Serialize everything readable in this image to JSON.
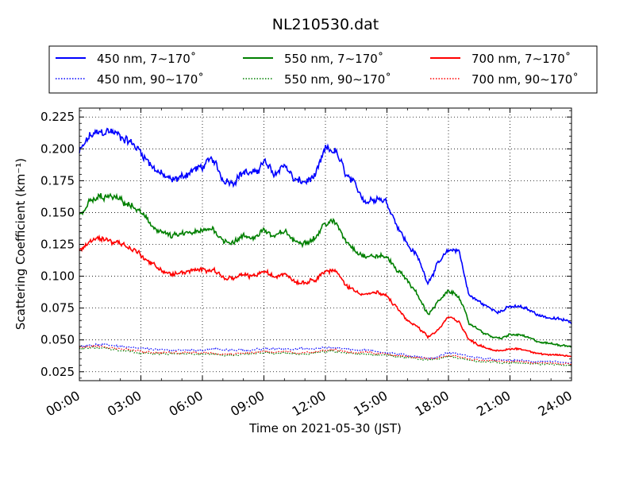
{
  "chart_data": {
    "type": "line",
    "title": "NL210530.dat",
    "xlabel": "Time on 2021-05-30 (JST)",
    "ylabel": "Scattering Coefficient (km⁻¹)",
    "x_unit": "hours",
    "xlim": [
      0,
      24
    ],
    "ylim": [
      0.018,
      0.232
    ],
    "xticks": [
      0,
      3,
      6,
      9,
      12,
      15,
      18,
      21,
      24
    ],
    "xtick_labels": [
      "00:00",
      "03:00",
      "06:00",
      "09:00",
      "12:00",
      "15:00",
      "18:00",
      "21:00",
      "24:00"
    ],
    "yticks": [
      0.025,
      0.05,
      0.075,
      0.1,
      0.125,
      0.15,
      0.175,
      0.2,
      0.225
    ],
    "ytick_labels": [
      "0.025",
      "0.050",
      "0.075",
      "0.100",
      "0.125",
      "0.150",
      "0.175",
      "0.200",
      "0.225"
    ],
    "grid": true,
    "legend_position": "top (above plot)",
    "x": [
      0,
      0.5,
      1,
      1.5,
      2,
      2.5,
      3,
      3.5,
      4,
      4.5,
      5,
      5.5,
      6,
      6.5,
      7,
      7.5,
      8,
      8.5,
      9,
      9.5,
      10,
      10.5,
      11,
      11.5,
      12,
      12.5,
      13,
      13.5,
      14,
      14.5,
      15,
      15.5,
      16,
      16.5,
      17,
      17.5,
      18,
      18.5,
      19,
      19.5,
      20,
      20.5,
      21,
      21.5,
      22,
      22.5,
      23,
      23.5,
      24
    ],
    "series": [
      {
        "name": "450 nm, 7∼170˚",
        "color": "#0000ff",
        "style": "solid",
        "values": [
          0.197,
          0.21,
          0.213,
          0.214,
          0.21,
          0.205,
          0.198,
          0.187,
          0.18,
          0.175,
          0.178,
          0.183,
          0.186,
          0.192,
          0.176,
          0.174,
          0.182,
          0.18,
          0.19,
          0.18,
          0.188,
          0.175,
          0.174,
          0.178,
          0.2,
          0.198,
          0.18,
          0.17,
          0.158,
          0.162,
          0.158,
          0.14,
          0.125,
          0.115,
          0.095,
          0.11,
          0.12,
          0.121,
          0.085,
          0.08,
          0.075,
          0.072,
          0.076,
          0.076,
          0.073,
          0.069,
          0.067,
          0.066,
          0.064
        ]
      },
      {
        "name": "450 nm, 90∼170˚",
        "color": "#0000ff",
        "style": "dotted",
        "values": [
          0.045,
          0.046,
          0.046,
          0.046,
          0.045,
          0.044,
          0.043,
          0.043,
          0.042,
          0.042,
          0.042,
          0.042,
          0.042,
          0.043,
          0.042,
          0.042,
          0.042,
          0.042,
          0.043,
          0.043,
          0.043,
          0.043,
          0.043,
          0.043,
          0.044,
          0.044,
          0.043,
          0.042,
          0.042,
          0.041,
          0.04,
          0.039,
          0.038,
          0.037,
          0.035,
          0.037,
          0.04,
          0.039,
          0.037,
          0.036,
          0.035,
          0.034,
          0.034,
          0.034,
          0.033,
          0.033,
          0.033,
          0.032,
          0.032
        ]
      },
      {
        "name": "550 nm, 7∼170˚",
        "color": "#008000",
        "style": "solid",
        "values": [
          0.148,
          0.158,
          0.162,
          0.162,
          0.16,
          0.155,
          0.15,
          0.14,
          0.135,
          0.131,
          0.133,
          0.134,
          0.135,
          0.138,
          0.128,
          0.127,
          0.131,
          0.13,
          0.137,
          0.13,
          0.136,
          0.127,
          0.127,
          0.13,
          0.142,
          0.142,
          0.128,
          0.12,
          0.115,
          0.116,
          0.115,
          0.105,
          0.097,
          0.085,
          0.07,
          0.08,
          0.088,
          0.085,
          0.063,
          0.058,
          0.053,
          0.051,
          0.054,
          0.054,
          0.051,
          0.048,
          0.047,
          0.046,
          0.045
        ]
      },
      {
        "name": "550 nm, 90∼170˚",
        "color": "#008000",
        "style": "dotted",
        "values": [
          0.043,
          0.044,
          0.044,
          0.043,
          0.042,
          0.041,
          0.04,
          0.039,
          0.039,
          0.039,
          0.039,
          0.039,
          0.039,
          0.039,
          0.038,
          0.038,
          0.039,
          0.039,
          0.04,
          0.039,
          0.04,
          0.039,
          0.039,
          0.04,
          0.041,
          0.041,
          0.04,
          0.039,
          0.039,
          0.038,
          0.038,
          0.037,
          0.036,
          0.035,
          0.034,
          0.035,
          0.037,
          0.036,
          0.034,
          0.033,
          0.033,
          0.032,
          0.032,
          0.032,
          0.031,
          0.031,
          0.031,
          0.03,
          0.03
        ]
      },
      {
        "name": "700 nm, 7∼170˚",
        "color": "#ff0000",
        "style": "solid",
        "values": [
          0.12,
          0.127,
          0.13,
          0.128,
          0.126,
          0.122,
          0.117,
          0.11,
          0.105,
          0.101,
          0.103,
          0.104,
          0.105,
          0.106,
          0.099,
          0.098,
          0.101,
          0.1,
          0.104,
          0.099,
          0.103,
          0.096,
          0.095,
          0.098,
          0.104,
          0.104,
          0.093,
          0.088,
          0.086,
          0.087,
          0.084,
          0.075,
          0.065,
          0.06,
          0.052,
          0.058,
          0.068,
          0.065,
          0.05,
          0.046,
          0.043,
          0.041,
          0.043,
          0.043,
          0.041,
          0.039,
          0.038,
          0.038,
          0.037
        ]
      },
      {
        "name": "700 nm, 90∼170˚",
        "color": "#ff0000",
        "style": "dotted",
        "values": [
          0.044,
          0.045,
          0.045,
          0.044,
          0.043,
          0.042,
          0.041,
          0.04,
          0.04,
          0.04,
          0.04,
          0.04,
          0.04,
          0.04,
          0.039,
          0.039,
          0.04,
          0.04,
          0.041,
          0.04,
          0.041,
          0.04,
          0.04,
          0.041,
          0.042,
          0.042,
          0.041,
          0.04,
          0.04,
          0.039,
          0.039,
          0.038,
          0.037,
          0.036,
          0.035,
          0.036,
          0.038,
          0.037,
          0.035,
          0.034,
          0.034,
          0.033,
          0.033,
          0.033,
          0.032,
          0.032,
          0.032,
          0.031,
          0.031
        ]
      }
    ]
  }
}
